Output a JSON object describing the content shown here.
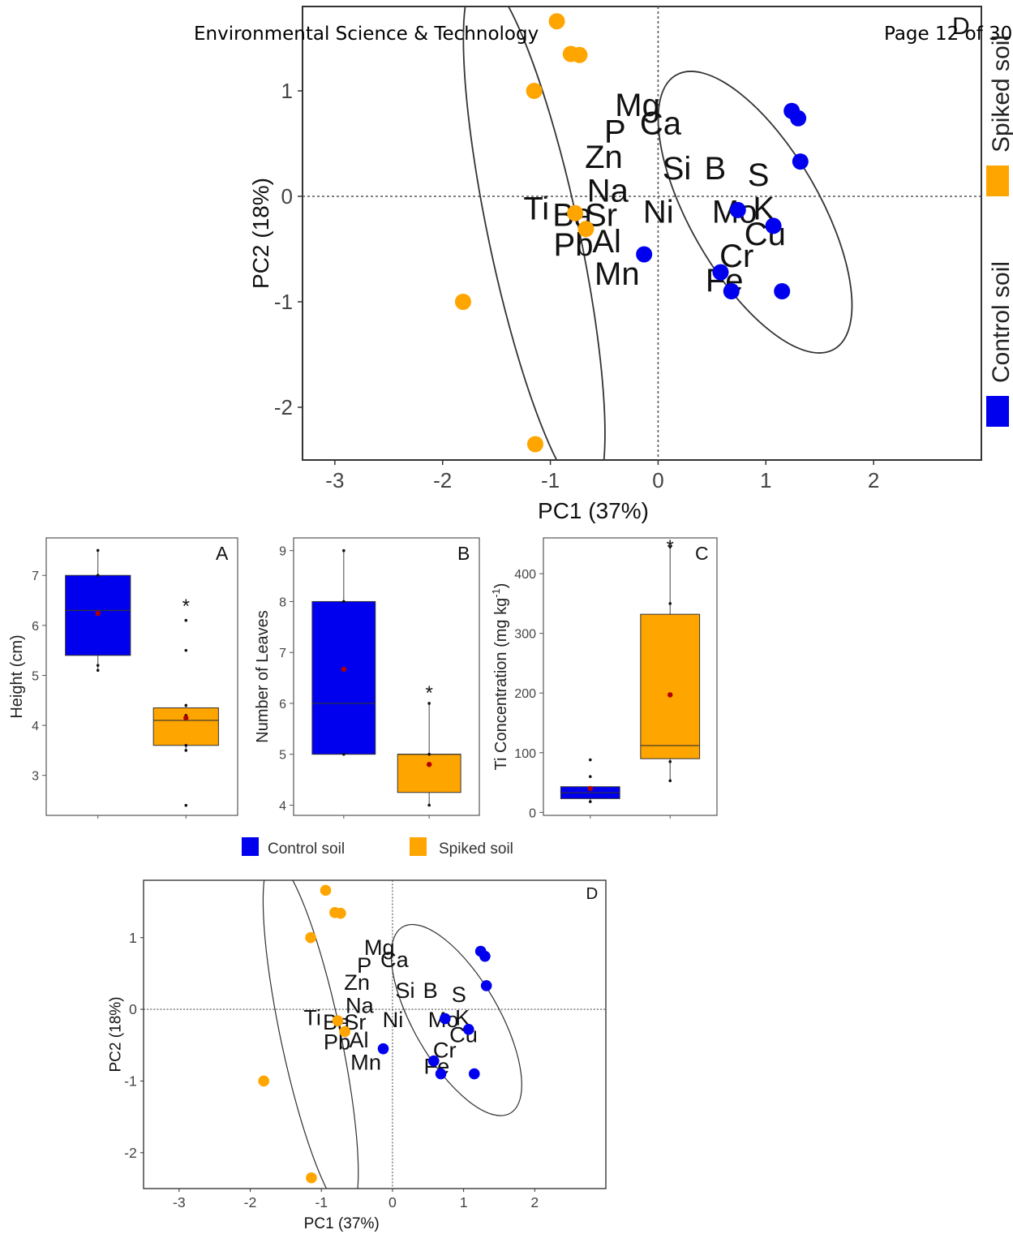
{
  "header": {
    "journal": "Environmental Science & Technology",
    "page": "Page 12 of 30"
  },
  "colors": {
    "control": "#0000ee",
    "spiked": "#ffa500",
    "mean": "#b30000",
    "axis": "#666666"
  },
  "legend_bottom": {
    "control_label": "Control soil",
    "spiked_label": "Spiked soil"
  },
  "legend_top": {
    "control_label": "Control soil",
    "spiked_label": "Spiked soil"
  },
  "chart_data": [
    {
      "type": "scatter",
      "panel": "D",
      "xlabel": "PC1 (37%)",
      "ylabel": "PC2 (18%)",
      "xlim": [
        -3.3,
        3.0
      ],
      "ylim": [
        -2.5,
        1.8
      ],
      "xticks": [
        -3,
        -2,
        -1,
        0,
        1,
        2
      ],
      "yticks": [
        -2,
        -1,
        0,
        1
      ],
      "series": [
        {
          "name": "Control soil",
          "points": [
            [
              1.24,
              0.81
            ],
            [
              1.3,
              0.74
            ],
            [
              1.32,
              0.33
            ],
            [
              0.74,
              -0.13
            ],
            [
              1.07,
              -0.28
            ],
            [
              -0.13,
              -0.55
            ],
            [
              0.58,
              -0.72
            ],
            [
              0.68,
              -0.9
            ],
            [
              1.15,
              -0.9
            ]
          ]
        },
        {
          "name": "Spiked soil",
          "points": [
            [
              -0.94,
              1.66
            ],
            [
              -0.81,
              1.35
            ],
            [
              -0.73,
              1.34
            ],
            [
              -1.15,
              1.0
            ],
            [
              -0.77,
              -0.16
            ],
            [
              -0.67,
              -0.31
            ],
            [
              -1.81,
              -1.0
            ],
            [
              -1.14,
              -2.35
            ]
          ]
        }
      ],
      "labels": [
        {
          "text": "Mg",
          "x": -0.4,
          "y": 0.76
        },
        {
          "text": "Ca",
          "x": -0.17,
          "y": 0.59
        },
        {
          "text": "P",
          "x": -0.5,
          "y": 0.51
        },
        {
          "text": "Zn",
          "x": -0.68,
          "y": 0.27
        },
        {
          "text": "Na",
          "x": -0.66,
          "y": -0.05
        },
        {
          "text": "Ti",
          "x": -1.25,
          "y": -0.22
        },
        {
          "text": "Ba",
          "x": -0.98,
          "y": -0.28
        },
        {
          "text": "Sr",
          "x": -0.68,
          "y": -0.28
        },
        {
          "text": "Pb",
          "x": -0.97,
          "y": -0.56
        },
        {
          "text": "Al",
          "x": -0.61,
          "y": -0.53
        },
        {
          "text": "Mn",
          "x": -0.59,
          "y": -0.84
        },
        {
          "text": "Si",
          "x": 0.04,
          "y": 0.16
        },
        {
          "text": "B",
          "x": 0.43,
          "y": 0.16
        },
        {
          "text": "S",
          "x": 0.83,
          "y": 0.1
        },
        {
          "text": "Ni",
          "x": -0.14,
          "y": -0.25
        },
        {
          "text": "Mo",
          "x": 0.5,
          "y": -0.25
        },
        {
          "text": "K",
          "x": 0.88,
          "y": -0.22
        },
        {
          "text": "Cu",
          "x": 0.8,
          "y": -0.46
        },
        {
          "text": "Cr",
          "x": 0.57,
          "y": -0.67
        },
        {
          "text": "Fe",
          "x": 0.44,
          "y": -0.9
        }
      ],
      "ellipses": [
        {
          "series": "Spiked soil",
          "cx": -1.15,
          "cy": -0.38,
          "rx": 0.42,
          "ry": 2.52,
          "rotation_deg": -12
        },
        {
          "series": "Control soil",
          "cx": 0.9,
          "cy": -0.15,
          "rx": 0.6,
          "ry": 1.5,
          "rotation_deg": -30
        }
      ]
    },
    {
      "type": "box",
      "panel": "A",
      "xlabel": "",
      "ylabel": "Height (cm)",
      "ylim": [
        2.2,
        7.75
      ],
      "yticks": [
        3,
        4,
        5,
        6,
        7
      ],
      "groups": [
        {
          "name": "Control soil",
          "q1": 5.4,
          "median": 6.3,
          "q3": 7.0,
          "min": 5.1,
          "max": 7.5,
          "mean": 6.24,
          "points": [
            7.5,
            7.0,
            5.2,
            5.1
          ],
          "sig": ""
        },
        {
          "name": "Spiked soil",
          "q1": 3.6,
          "median": 4.1,
          "q3": 4.35,
          "min": 3.5,
          "max": 4.4,
          "mean": 4.15,
          "points": [
            6.1,
            5.5,
            4.4,
            4.2,
            3.6,
            3.5,
            2.4
          ],
          "sig": "*"
        }
      ]
    },
    {
      "type": "box",
      "panel": "B",
      "xlabel": "",
      "ylabel": "Number of Leaves",
      "ylim": [
        3.8,
        9.25
      ],
      "yticks": [
        4,
        5,
        6,
        7,
        8,
        9
      ],
      "groups": [
        {
          "name": "Control soil",
          "q1": 5.0,
          "median": 6.0,
          "q3": 8.0,
          "min": 5.0,
          "max": 9.0,
          "mean": 6.67,
          "points": [
            9,
            8,
            5
          ],
          "sig": ""
        },
        {
          "name": "Spiked soil",
          "q1": 4.25,
          "median": 5.0,
          "q3": 5.0,
          "min": 4.0,
          "max": 6.0,
          "mean": 4.8,
          "points": [
            6,
            5,
            4
          ],
          "sig": "*"
        }
      ]
    },
    {
      "type": "box",
      "panel": "C",
      "xlabel": "",
      "ylabel": "Ti Concentration (mg kg-1)",
      "ylim": [
        -5,
        460
      ],
      "yticks": [
        0,
        100,
        200,
        300,
        400
      ],
      "groups": [
        {
          "name": "Control soil",
          "q1": 23,
          "median": 33,
          "q3": 43,
          "min": 18,
          "max": 43,
          "mean": 40,
          "points": [
            88,
            60,
            40,
            18
          ],
          "sig": ""
        },
        {
          "name": "Spiked soil",
          "q1": 90,
          "median": 112,
          "q3": 332,
          "min": 53,
          "max": 445,
          "mean": 197,
          "points": [
            445,
            350,
            85,
            53
          ],
          "sig": "*"
        }
      ]
    },
    {
      "type": "scatter",
      "panel": "D",
      "xlabel": "PC1 (37%)",
      "ylabel": "PC2 (18%)",
      "xlim": [
        -3.5,
        3.0
      ],
      "ylim": [
        -2.5,
        1.8
      ],
      "xticks": [
        -3,
        -2,
        -1,
        0,
        1,
        2
      ],
      "yticks": [
        -2,
        -1,
        0,
        1
      ],
      "series": [
        {
          "name": "Control soil",
          "points": [
            [
              1.24,
              0.81
            ],
            [
              1.3,
              0.74
            ],
            [
              1.32,
              0.33
            ],
            [
              0.74,
              -0.13
            ],
            [
              1.07,
              -0.28
            ],
            [
              -0.13,
              -0.55
            ],
            [
              0.58,
              -0.72
            ],
            [
              0.68,
              -0.9
            ],
            [
              1.15,
              -0.9
            ]
          ]
        },
        {
          "name": "Spiked soil",
          "points": [
            [
              -0.94,
              1.66
            ],
            [
              -0.81,
              1.35
            ],
            [
              -0.73,
              1.34
            ],
            [
              -1.15,
              1.0
            ],
            [
              -0.77,
              -0.16
            ],
            [
              -0.67,
              -0.31
            ],
            [
              -1.81,
              -1.0
            ],
            [
              -1.14,
              -2.35
            ]
          ]
        }
      ],
      "labels": [
        {
          "text": "Mg",
          "x": -0.4,
          "y": 0.76
        },
        {
          "text": "Ca",
          "x": -0.17,
          "y": 0.59
        },
        {
          "text": "P",
          "x": -0.5,
          "y": 0.51
        },
        {
          "text": "Zn",
          "x": -0.68,
          "y": 0.27
        },
        {
          "text": "Na",
          "x": -0.66,
          "y": -0.05
        },
        {
          "text": "Ti",
          "x": -1.25,
          "y": -0.22
        },
        {
          "text": "Ba",
          "x": -0.98,
          "y": -0.28
        },
        {
          "text": "Sr",
          "x": -0.68,
          "y": -0.28
        },
        {
          "text": "Pb",
          "x": -0.97,
          "y": -0.56
        },
        {
          "text": "Al",
          "x": -0.61,
          "y": -0.53
        },
        {
          "text": "Mn",
          "x": -0.59,
          "y": -0.84
        },
        {
          "text": "Si",
          "x": 0.04,
          "y": 0.16
        },
        {
          "text": "B",
          "x": 0.43,
          "y": 0.16
        },
        {
          "text": "S",
          "x": 0.83,
          "y": 0.1
        },
        {
          "text": "Ni",
          "x": -0.14,
          "y": -0.25
        },
        {
          "text": "Mo",
          "x": 0.5,
          "y": -0.25
        },
        {
          "text": "K",
          "x": 0.88,
          "y": -0.22
        },
        {
          "text": "Cu",
          "x": 0.8,
          "y": -0.46
        },
        {
          "text": "Cr",
          "x": 0.57,
          "y": -0.67
        },
        {
          "text": "Fe",
          "x": 0.44,
          "y": -0.9
        }
      ],
      "ellipses": [
        {
          "series": "Spiked soil",
          "cx": -1.15,
          "cy": -0.38,
          "rx": 0.42,
          "ry": 2.52,
          "rotation_deg": -12
        },
        {
          "series": "Control soil",
          "cx": 0.9,
          "cy": -0.15,
          "rx": 0.6,
          "ry": 1.5,
          "rotation_deg": -30
        }
      ]
    }
  ]
}
